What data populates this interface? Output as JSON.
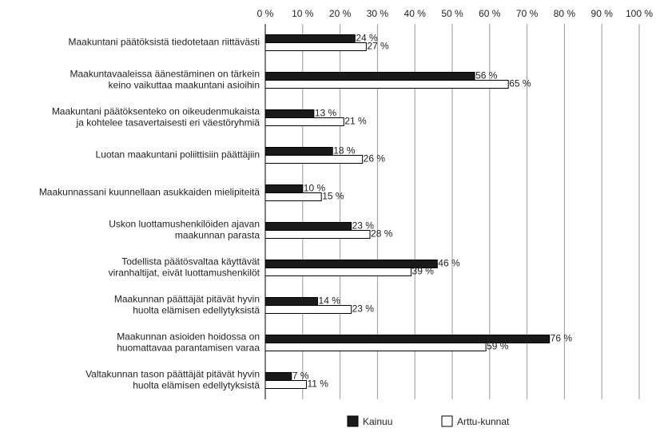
{
  "chart_data": {
    "type": "bar",
    "orientation": "horizontal",
    "categories": [
      [
        "Maakuntani päätöksistä tiedotetaan riittävästi"
      ],
      [
        "Maakuntavaaleissa äänestäminen on tärkein",
        "keino vaikuttaa maakuntani asioihin"
      ],
      [
        "Maakuntani päätöksenteko on oikeudenmukaista",
        "ja kohtelee tasavertaisesti eri väestöryhmiä"
      ],
      [
        "Luotan maakuntani poliittisiin päättäjiin"
      ],
      [
        "Maakunnassani kuunnellaan asukkaiden mielipiteitä"
      ],
      [
        "Uskon luottamushenkilöiden ajavan",
        "maakunnan parasta"
      ],
      [
        "Todellista päätösvaltaa käyttävät",
        "viranhaltijat, eivät luottamushenkilöt"
      ],
      [
        "Maakunnan päättäjät pitävät hyvin",
        "huolta elämisen edellytyksistä"
      ],
      [
        "Maakunnan asioiden hoidossa on",
        "huomattavaa parantamisen varaa"
      ],
      [
        "Valtakunnan tason päättäjät pitävät hyvin",
        "huolta elämisen edellytyksistä"
      ]
    ],
    "series": [
      {
        "name": "Kainuu",
        "color": "#1a1a1a",
        "values": [
          24,
          56,
          13,
          18,
          10,
          23,
          46,
          14,
          76,
          7
        ],
        "value_labels": [
          "24 %",
          "56 %",
          "13 %",
          "18 %",
          "10 %",
          "23 %",
          "46 %",
          "14 %",
          "76 %",
          "7 %"
        ]
      },
      {
        "name": "Arttu-kunnat",
        "color": "#ffffff",
        "values": [
          27,
          65,
          21,
          26,
          15,
          28,
          39,
          23,
          59,
          11
        ],
        "value_labels": [
          "27 %",
          "65 %",
          "21 %",
          "26 %",
          "15 %",
          "28 %",
          "39 %",
          "23 %",
          "59 %",
          "11 %"
        ]
      }
    ],
    "xlim": [
      0,
      100
    ],
    "xticks": [
      {
        "value": 0,
        "label": "0 %"
      },
      {
        "value": 10,
        "label": "10 %"
      },
      {
        "value": 20,
        "label": "20 %"
      },
      {
        "value": 30,
        "label": "30 %"
      },
      {
        "value": 40,
        "label": "40 %"
      },
      {
        "value": 50,
        "label": "50 %"
      },
      {
        "value": 60,
        "label": "60 %"
      },
      {
        "value": 70,
        "label": "70 %"
      },
      {
        "value": 80,
        "label": "80 %"
      },
      {
        "value": 90,
        "label": "90 %"
      },
      {
        "value": 100,
        "label": "100 %"
      }
    ],
    "grid": true,
    "legend": "bottom"
  }
}
